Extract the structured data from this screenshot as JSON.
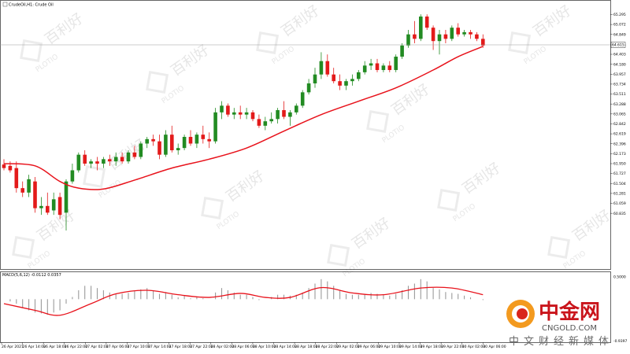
{
  "main_title": "CrudeOil,H1: Crude Oil",
  "macd_title": "MACD(5,6,12) -0.0112 0.0357",
  "current_price_label": "64.615",
  "watermark": {
    "cn": "百利好",
    "en": "PLOTIO"
  },
  "logo": {
    "cn": "中金网",
    "en": "CNGOLD.COM",
    "sub": "中文财经新媒体"
  },
  "colors": {
    "up": "#228b22",
    "down": "#e31a1a",
    "ma": "#e8121b",
    "macd_hist": "#9a9a9a",
    "macd_signal": "#e8121b"
  },
  "chart_data": [
    {
      "type": "candlestick",
      "title": "CrudeOil,H1: Crude Oil",
      "ylim": [
        59.62,
        65.48
      ],
      "price_ticks": [
        "65.295",
        "65.072",
        "64.849",
        "64.615",
        "64.403",
        "64.180",
        "63.957",
        "63.734",
        "63.511",
        "63.288",
        "63.065",
        "62.842",
        "62.619",
        "62.396",
        "62.173",
        "61.950",
        "61.727",
        "61.504",
        "61.281",
        "61.059",
        "60.835"
      ],
      "x_labels": [
        "26 Apr 2021",
        "26 Apr 14:00",
        "26 Apr 18:00",
        "26 Apr 22:00",
        "27 Apr 02:00",
        "27 Apr 06:00",
        "27 Apr 10:00",
        "27 Apr 14:00",
        "27 Apr 18:00",
        "27 Apr 22:00",
        "28 Apr 02:00",
        "28 Apr 06:00",
        "28 Apr 10:00",
        "28 Apr 14:00",
        "28 Apr 18:00",
        "28 Apr 22:00",
        "29 Apr 02:00",
        "29 Apr 06:00",
        "29 Apr 10:00",
        "29 Apr 14:00",
        "29 Apr 18:00",
        "29 Apr 22:00",
        "30 Apr 02:00",
        "30 Apr 06:00"
      ],
      "candles": [
        [
          61.93,
          62.05,
          61.8,
          61.85
        ],
        [
          61.9,
          62.0,
          61.75,
          61.8
        ],
        [
          61.85,
          62.0,
          61.3,
          61.4
        ],
        [
          61.4,
          61.55,
          61.2,
          61.3
        ],
        [
          61.3,
          61.7,
          61.2,
          61.6
        ],
        [
          61.55,
          61.65,
          60.85,
          60.95
        ],
        [
          60.95,
          61.2,
          60.8,
          61.0
        ],
        [
          61.0,
          61.3,
          60.8,
          60.85
        ],
        [
          60.9,
          61.3,
          60.8,
          61.15
        ],
        [
          61.2,
          61.3,
          60.7,
          60.8
        ],
        [
          60.85,
          61.6,
          60.45,
          61.55
        ],
        [
          61.55,
          61.95,
          61.5,
          61.8
        ],
        [
          61.8,
          62.2,
          61.75,
          62.15
        ],
        [
          62.15,
          62.25,
          61.9,
          61.95
        ],
        [
          61.95,
          62.05,
          61.85,
          62.0
        ],
        [
          62.0,
          62.1,
          61.8,
          61.95
        ],
        [
          61.95,
          62.1,
          61.85,
          62.05
        ],
        [
          62.05,
          62.15,
          61.9,
          62.0
        ],
        [
          62.0,
          62.2,
          61.9,
          62.1
        ],
        [
          62.1,
          62.2,
          61.95,
          62.0
        ],
        [
          62.0,
          62.25,
          61.95,
          62.2
        ],
        [
          62.2,
          62.35,
          62.05,
          62.1
        ],
        [
          62.1,
          62.45,
          62.05,
          62.4
        ],
        [
          62.4,
          62.55,
          62.3,
          62.5
        ],
        [
          62.5,
          62.6,
          62.35,
          62.45
        ],
        [
          62.45,
          62.6,
          62.05,
          62.15
        ],
        [
          62.15,
          62.7,
          62.1,
          62.6
        ],
        [
          62.6,
          62.8,
          62.2,
          62.25
        ],
        [
          62.25,
          62.4,
          62.15,
          62.3
        ],
        [
          62.3,
          62.6,
          62.25,
          62.55
        ],
        [
          62.55,
          62.7,
          62.35,
          62.4
        ],
        [
          62.4,
          62.65,
          62.3,
          62.6
        ],
        [
          62.6,
          62.8,
          62.4,
          62.5
        ],
        [
          62.5,
          62.65,
          62.3,
          62.45
        ],
        [
          62.45,
          63.2,
          62.4,
          63.1
        ],
        [
          63.1,
          63.35,
          62.95,
          63.25
        ],
        [
          63.25,
          63.3,
          63.0,
          63.05
        ],
        [
          63.05,
          63.2,
          62.95,
          63.1
        ],
        [
          63.1,
          63.25,
          62.95,
          63.05
        ],
        [
          63.05,
          63.2,
          62.95,
          63.1
        ],
        [
          63.1,
          63.15,
          62.9,
          62.95
        ],
        [
          62.95,
          63.05,
          62.75,
          62.8
        ],
        [
          62.8,
          63.0,
          62.7,
          62.9
        ],
        [
          62.9,
          63.1,
          62.85,
          62.95
        ],
        [
          62.95,
          63.2,
          62.85,
          63.15
        ],
        [
          63.15,
          63.35,
          62.95,
          63.0
        ],
        [
          63.0,
          63.15,
          62.8,
          63.1
        ],
        [
          63.1,
          63.3,
          63.05,
          63.25
        ],
        [
          63.25,
          63.6,
          63.2,
          63.55
        ],
        [
          63.55,
          63.85,
          63.5,
          63.75
        ],
        [
          63.75,
          64.1,
          63.65,
          63.95
        ],
        [
          63.95,
          64.45,
          63.85,
          64.25
        ],
        [
          64.25,
          64.4,
          63.9,
          63.95
        ],
        [
          63.95,
          64.1,
          63.75,
          63.8
        ],
        [
          63.8,
          63.95,
          63.6,
          63.7
        ],
        [
          63.7,
          63.85,
          63.6,
          63.8
        ],
        [
          63.8,
          63.95,
          63.7,
          63.85
        ],
        [
          63.85,
          64.05,
          63.8,
          64.0
        ],
        [
          64.0,
          64.25,
          63.95,
          64.15
        ],
        [
          64.15,
          64.3,
          64.05,
          64.2
        ],
        [
          64.2,
          64.3,
          64.0,
          64.05
        ],
        [
          64.05,
          64.2,
          64.0,
          64.15
        ],
        [
          64.15,
          64.25,
          64.0,
          64.05
        ],
        [
          64.05,
          64.4,
          64.0,
          64.35
        ],
        [
          64.35,
          64.65,
          64.3,
          64.6
        ],
        [
          64.6,
          64.95,
          64.55,
          64.85
        ],
        [
          64.85,
          65.15,
          64.65,
          64.75
        ],
        [
          64.75,
          65.3,
          64.7,
          65.25
        ],
        [
          65.25,
          65.3,
          64.95,
          65.0
        ],
        [
          65.0,
          65.05,
          64.5,
          64.7
        ],
        [
          64.7,
          64.95,
          64.4,
          64.85
        ],
        [
          64.85,
          64.95,
          64.65,
          64.75
        ],
        [
          64.75,
          65.05,
          64.7,
          65.0
        ],
        [
          65.0,
          65.1,
          64.8,
          64.85
        ],
        [
          64.85,
          64.95,
          64.8,
          64.9
        ],
        [
          64.9,
          64.95,
          64.75,
          64.85
        ],
        [
          64.85,
          64.9,
          64.7,
          64.75
        ],
        [
          64.75,
          64.85,
          64.55,
          64.6
        ]
      ],
      "ma": [
        {
          "i": 0,
          "v": 61.95
        },
        {
          "i": 5,
          "v": 61.9
        },
        {
          "i": 9,
          "v": 61.55
        },
        {
          "i": 12,
          "v": 61.4
        },
        {
          "i": 16,
          "v": 61.38
        },
        {
          "i": 21,
          "v": 61.58
        },
        {
          "i": 27,
          "v": 61.85
        },
        {
          "i": 33,
          "v": 62.05
        },
        {
          "i": 39,
          "v": 62.3
        },
        {
          "i": 45,
          "v": 62.68
        },
        {
          "i": 51,
          "v": 63.05
        },
        {
          "i": 57,
          "v": 63.35
        },
        {
          "i": 63,
          "v": 63.65
        },
        {
          "i": 69,
          "v": 64.05
        },
        {
          "i": 73,
          "v": 64.35
        },
        {
          "i": 77,
          "v": 64.58
        }
      ],
      "current_price": 64.615
    },
    {
      "type": "bar",
      "title": "MACD(5,6,12) -0.0112 0.0357",
      "ylim": [
        -0.93,
        0.5
      ],
      "y_ticks": [
        "0.5000",
        "-0.9397"
      ],
      "hist": [
        0.0,
        -0.05,
        -0.1,
        -0.2,
        -0.25,
        -0.3,
        -0.32,
        -0.35,
        -0.3,
        -0.25,
        -0.1,
        0.05,
        0.2,
        0.3,
        0.3,
        0.25,
        0.2,
        0.15,
        0.12,
        0.12,
        0.14,
        0.18,
        0.22,
        0.25,
        0.2,
        0.12,
        0.16,
        0.1,
        0.04,
        0.07,
        0.02,
        0.04,
        0.02,
        0.0,
        0.15,
        0.25,
        0.2,
        0.15,
        0.1,
        0.1,
        0.05,
        -0.02,
        0.0,
        0.05,
        0.1,
        0.1,
        0.08,
        0.1,
        0.15,
        0.25,
        0.35,
        0.45,
        0.4,
        0.3,
        0.2,
        0.12,
        0.1,
        0.1,
        0.12,
        0.14,
        0.12,
        0.1,
        0.08,
        0.12,
        0.2,
        0.3,
        0.35,
        0.45,
        0.4,
        0.25,
        0.22,
        0.16,
        0.14,
        0.12,
        0.08,
        0.04,
        0.0,
        -0.02
      ],
      "signal": [
        {
          "i": 0,
          "v": -0.1
        },
        {
          "i": 5,
          "v": -0.25
        },
        {
          "i": 9,
          "v": -0.36
        },
        {
          "i": 14,
          "v": -0.1
        },
        {
          "i": 18,
          "v": 0.12
        },
        {
          "i": 23,
          "v": 0.2
        },
        {
          "i": 28,
          "v": 0.1
        },
        {
          "i": 33,
          "v": 0.04
        },
        {
          "i": 38,
          "v": 0.13
        },
        {
          "i": 42,
          "v": 0.04
        },
        {
          "i": 46,
          "v": 0.04
        },
        {
          "i": 51,
          "v": 0.26
        },
        {
          "i": 56,
          "v": 0.14
        },
        {
          "i": 61,
          "v": 0.1
        },
        {
          "i": 67,
          "v": 0.25
        },
        {
          "i": 72,
          "v": 0.25
        },
        {
          "i": 77,
          "v": 0.1
        }
      ]
    }
  ]
}
